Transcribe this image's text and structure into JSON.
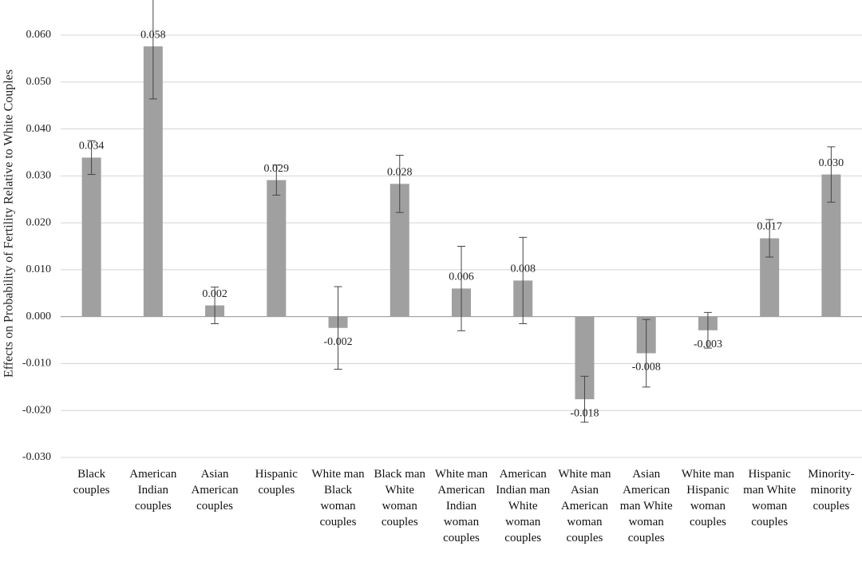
{
  "chart_data": {
    "type": "bar",
    "y_label": "Effects on Probability of Fertility Relative to White Couples",
    "categories": [
      "Black couples",
      "American Indian couples",
      "Asian American couples",
      "Hispanic couples",
      "White man Black woman couples",
      "Black man White woman couples",
      "White man American Indian woman couples",
      "American Indian man White woman couples",
      "White man Asian American woman couples",
      "Asian American man White woman couples",
      "White man Hispanic woman couples",
      "Hispanic man White woman couples",
      "Minority-minority couples"
    ],
    "values": [
      0.0339,
      0.0576,
      0.0024,
      0.0291,
      -0.0024,
      0.0283,
      0.006,
      0.0077,
      -0.0176,
      -0.0078,
      -0.0029,
      0.0167,
      0.0303
    ],
    "value_labels": [
      "0.034",
      "0.058",
      "0.002",
      "0.029",
      "-0.002",
      "0.028",
      "0.006",
      "0.008",
      "-0.018",
      "-0.008",
      "-0.003",
      "0.017",
      "0.030"
    ],
    "errors": [
      0.0036,
      0.0112,
      0.0039,
      0.0032,
      0.0088,
      0.0061,
      0.009,
      0.0092,
      0.0049,
      0.0072,
      0.0038,
      0.004,
      0.0059
    ],
    "color": "#a0a0a0",
    "ylim": [
      -0.03,
      0.06
    ],
    "yticks": [
      {
        "value": -0.03,
        "label": "-0.030"
      },
      {
        "value": -0.02,
        "label": "-0.020"
      },
      {
        "value": -0.01,
        "label": "-0.010"
      },
      {
        "value": 0,
        "label": "0.000"
      },
      {
        "value": 0.01,
        "label": "0.010"
      },
      {
        "value": 0.02,
        "label": "0.020"
      },
      {
        "value": 0.03,
        "label": "0.030"
      },
      {
        "value": 0.04,
        "label": "0.040"
      },
      {
        "value": 0.05,
        "label": "0.050"
      },
      {
        "value": 0.06,
        "label": "0.060"
      }
    ],
    "grid": true
  }
}
